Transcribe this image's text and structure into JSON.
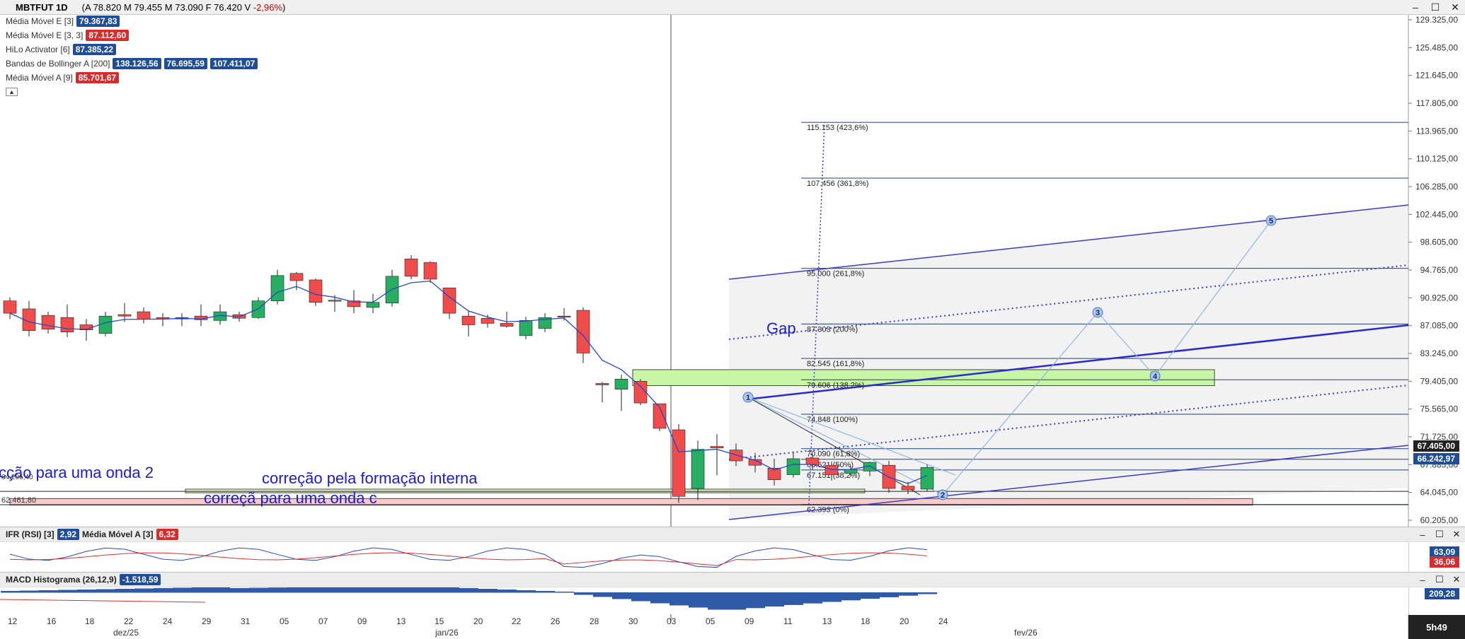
{
  "header": {
    "symbol": "MBTFUT 1D",
    "ohlc_prefix": "(A ",
    "open": "78.820",
    "high_label": " M ",
    "high": "79.455",
    "low_label": " M ",
    "low": "73.090",
    "close_label": " F ",
    "close": "76.420",
    "var_label": " V ",
    "var": "-2,96%",
    "suffix": ")"
  },
  "indicators": [
    {
      "label": "Média Móvel E [3]",
      "values": [
        "79.367,83"
      ],
      "colors": [
        "#1f4e96"
      ]
    },
    {
      "label": "Média Móvel E [3, 3]",
      "values": [
        "87.112,60"
      ],
      "colors": [
        "#d92b2b"
      ]
    },
    {
      "label": "HiLo Activator [6]",
      "values": [
        "87.385,22"
      ],
      "colors": [
        "#1f4e96"
      ]
    },
    {
      "label": "Bandas de Bollinger A [200]",
      "values": [
        "138.126,56",
        "76.695,59",
        "107.411,07"
      ],
      "colors": [
        "#1f4e96",
        "#1f4e96",
        "#1f4e96"
      ]
    },
    {
      "label": "Média Móvel A [9]",
      "values": [
        "85.701,67"
      ],
      "colors": [
        "#d92b2b"
      ]
    }
  ],
  "rsi_panel": {
    "label": "IFR (RSI) [3]",
    "value": "2,92",
    "ma_label": "Média Móvel A [3]",
    "ma_value": "6,32",
    "tag1": "63,09",
    "tag2": "36,06"
  },
  "macd_panel": {
    "label": "MACD Histograma (26,12,9)",
    "value": "-1.518,59",
    "tag": "209,28"
  },
  "price_tags": {
    "last": "67.405,00",
    "second": "66.242,97"
  },
  "annotations": {
    "gap": "Gap",
    "wave2": "cção para uma onda 2",
    "internal": "correção pela formação interna",
    "wavec": "correçã para uma onda c"
  },
  "left_labels": {
    "l1": "64.206,40",
    "l2": "62.461,80"
  },
  "clock": "5h49",
  "x_ticks": [
    "12",
    "16",
    "18",
    "22",
    "24",
    "29",
    "31",
    "05",
    "07",
    "09",
    "13",
    "15",
    "20",
    "22",
    "26",
    "28",
    "30",
    "03",
    "05",
    "09",
    "11",
    "13",
    "18",
    "20",
    "24"
  ],
  "months": [
    "dez/25",
    "jan/26",
    "fev/26"
  ],
  "colors": {
    "up": "#27ae60",
    "down": "#f04c4c",
    "line": "#2548c8",
    "fib": "#1f3f7a"
  },
  "chart_data": {
    "type": "candlestick",
    "yticks": [
      "129.325,00",
      "125.485,00",
      "121.645,00",
      "117.805,00",
      "113.965,00",
      "110.125,00",
      "106.285,00",
      "102.445,00",
      "98.605,00",
      "94.765,00",
      "90.925,00",
      "87.085,00",
      "83.245,00",
      "79.405,00",
      "75.565,00",
      "71.725,00",
      "67.885,00",
      "64.045,00",
      "60.205,00"
    ],
    "ylim": [
      60205,
      129325
    ],
    "candles": [
      {
        "o": 90500,
        "c": 88800,
        "h": 91000,
        "l": 88000
      },
      {
        "o": 89400,
        "c": 86400,
        "h": 90500,
        "l": 85600
      },
      {
        "o": 88500,
        "c": 86600,
        "h": 89000,
        "l": 86000
      },
      {
        "o": 88200,
        "c": 86200,
        "h": 90000,
        "l": 85500
      },
      {
        "o": 87200,
        "c": 86500,
        "h": 88000,
        "l": 85000
      },
      {
        "o": 86000,
        "c": 88400,
        "h": 89000,
        "l": 85600
      },
      {
        "o": 88600,
        "c": 88400,
        "h": 90200,
        "l": 87600
      },
      {
        "o": 89000,
        "c": 88000,
        "h": 89600,
        "l": 87400
      },
      {
        "o": 88200,
        "c": 88000,
        "h": 88800,
        "l": 87000
      },
      {
        "o": 88000,
        "c": 88200,
        "h": 88800,
        "l": 87000
      },
      {
        "o": 88400,
        "c": 87900,
        "h": 90000,
        "l": 87000
      },
      {
        "o": 87800,
        "c": 89000,
        "h": 90000,
        "l": 87200
      },
      {
        "o": 88600,
        "c": 88100,
        "h": 89000,
        "l": 87600
      },
      {
        "o": 88200,
        "c": 90500,
        "h": 91000,
        "l": 88000
      },
      {
        "o": 90500,
        "c": 94000,
        "h": 94800,
        "l": 90000
      },
      {
        "o": 94300,
        "c": 93300,
        "h": 94500,
        "l": 92000
      },
      {
        "o": 93400,
        "c": 90300,
        "h": 93600,
        "l": 89800
      },
      {
        "o": 90500,
        "c": 90600,
        "h": 91300,
        "l": 89000
      },
      {
        "o": 90500,
        "c": 89700,
        "h": 92000,
        "l": 88800
      },
      {
        "o": 89600,
        "c": 90300,
        "h": 91500,
        "l": 88800
      },
      {
        "o": 90200,
        "c": 93900,
        "h": 94800,
        "l": 89700
      },
      {
        "o": 96300,
        "c": 93900,
        "h": 96800,
        "l": 93500
      },
      {
        "o": 95800,
        "c": 93500,
        "h": 96000,
        "l": 93000
      },
      {
        "o": 92300,
        "c": 88800,
        "h": 92300,
        "l": 88000
      },
      {
        "o": 88400,
        "c": 87200,
        "h": 89200,
        "l": 85600
      },
      {
        "o": 88100,
        "c": 87400,
        "h": 88600,
        "l": 86800
      },
      {
        "o": 87400,
        "c": 87000,
        "h": 89000,
        "l": 86800
      },
      {
        "o": 85700,
        "c": 87800,
        "h": 88300,
        "l": 85200
      },
      {
        "o": 86700,
        "c": 88200,
        "h": 88800,
        "l": 86200
      },
      {
        "o": 88400,
        "c": 88300,
        "h": 89500,
        "l": 87800
      },
      {
        "o": 89200,
        "c": 83300,
        "h": 89600,
        "l": 81900
      },
      {
        "o": 79100,
        "c": 78900,
        "h": 79300,
        "l": 76500
      },
      {
        "o": 78300,
        "c": 79700,
        "h": 80300,
        "l": 75300
      },
      {
        "o": 79400,
        "c": 76400,
        "h": 79700,
        "l": 76100
      },
      {
        "o": 76300,
        "c": 72900,
        "h": 76300,
        "l": 72500
      },
      {
        "o": 72700,
        "c": 63500,
        "h": 73500,
        "l": 62600
      },
      {
        "o": 64600,
        "c": 70000,
        "h": 71200,
        "l": 63000
      },
      {
        "o": 70400,
        "c": 70200,
        "h": 72100,
        "l": 66400
      },
      {
        "o": 69900,
        "c": 68400,
        "h": 70800,
        "l": 67700
      },
      {
        "o": 68600,
        "c": 67800,
        "h": 69500,
        "l": 66800
      },
      {
        "o": 67400,
        "c": 65800,
        "h": 68700,
        "l": 65000
      },
      {
        "o": 66500,
        "c": 68700,
        "h": 69700,
        "l": 66100
      },
      {
        "o": 68800,
        "c": 67900,
        "h": 69400,
        "l": 67200
      },
      {
        "o": 67800,
        "c": 66500,
        "h": 68300,
        "l": 65700
      },
      {
        "o": 66700,
        "c": 67200,
        "h": 67700,
        "l": 66200
      },
      {
        "o": 67000,
        "c": 68200,
        "h": 68300,
        "l": 66300
      },
      {
        "o": 67800,
        "c": 64600,
        "h": 68400,
        "l": 64000
      },
      {
        "o": 64900,
        "c": 64400,
        "h": 65500,
        "l": 63800
      },
      {
        "o": 64500,
        "c": 67500,
        "h": 67900,
        "l": 64200
      }
    ],
    "fib_levels": [
      {
        "label": "115.153 (423,6%)",
        "value": 115153
      },
      {
        "label": "107.456 (361,8%)",
        "value": 107456
      },
      {
        "label": "95.000 (261,8%)",
        "value": 95000
      },
      {
        "label": "87.303 (200%)",
        "value": 87303
      },
      {
        "label": "82.545 (161,8%)",
        "value": 82545
      },
      {
        "label": "79.606 (138,2%)",
        "value": 79606
      },
      {
        "label": "74.848 (100%)",
        "value": 74848
      },
      {
        "label": "70.090 (61,8%)",
        "value": 70090
      },
      {
        "label": "68.621 (50%)",
        "value": 68621
      },
      {
        "label": "67.151 (38,2%)",
        "value": 67151
      },
      {
        "label": "62.393 (0%)",
        "value": 62393
      }
    ],
    "wave_labels": [
      "1",
      "2",
      "3",
      "4",
      "5"
    ]
  }
}
